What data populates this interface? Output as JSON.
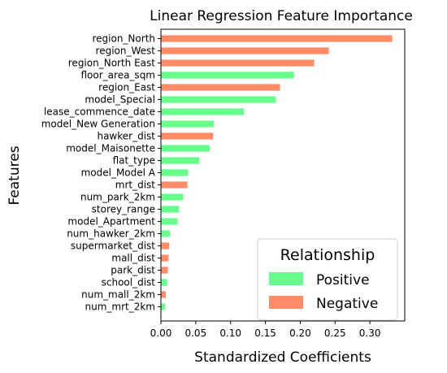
{
  "chart_data": {
    "type": "bar",
    "orientation": "horizontal",
    "title": "Linear Regression Feature Importance",
    "xlabel": "Standardized Coefficients",
    "ylabel": "Features",
    "xlim": [
      0,
      0.35
    ],
    "xticks": [
      "0.00",
      "0.05",
      "0.10",
      "0.15",
      "0.20",
      "0.25",
      "0.30"
    ],
    "xtick_values": [
      0,
      0.05,
      0.1,
      0.15,
      0.2,
      0.25,
      0.3
    ],
    "grid": false,
    "legend": {
      "title": "Relationship",
      "placement": "bottom-right",
      "entries": [
        {
          "label": "Positive",
          "color": "#66ff8c"
        },
        {
          "label": "Negative",
          "color": "#ff8c66"
        }
      ]
    },
    "colors": {
      "Positive": "#66ff8c",
      "Negative": "#ff8c66"
    },
    "bars": [
      {
        "feature": "region_North",
        "value": 0.332,
        "relationship": "Negative"
      },
      {
        "feature": "region_West",
        "value": 0.241,
        "relationship": "Negative"
      },
      {
        "feature": "region_North East",
        "value": 0.22,
        "relationship": "Negative"
      },
      {
        "feature": "floor_area_sqm",
        "value": 0.191,
        "relationship": "Positive"
      },
      {
        "feature": "region_East",
        "value": 0.171,
        "relationship": "Negative"
      },
      {
        "feature": "model_Special",
        "value": 0.165,
        "relationship": "Positive"
      },
      {
        "feature": "lease_commence_date",
        "value": 0.119,
        "relationship": "Positive"
      },
      {
        "feature": "model_New Generation",
        "value": 0.076,
        "relationship": "Positive"
      },
      {
        "feature": "hawker_dist",
        "value": 0.075,
        "relationship": "Negative"
      },
      {
        "feature": "model_Maisonette",
        "value": 0.07,
        "relationship": "Positive"
      },
      {
        "feature": "flat_type",
        "value": 0.055,
        "relationship": "Positive"
      },
      {
        "feature": "model_Model A",
        "value": 0.039,
        "relationship": "Positive"
      },
      {
        "feature": "mrt_dist",
        "value": 0.038,
        "relationship": "Negative"
      },
      {
        "feature": "num_park_2km",
        "value": 0.032,
        "relationship": "Positive"
      },
      {
        "feature": "storey_range",
        "value": 0.026,
        "relationship": "Positive"
      },
      {
        "feature": "model_Apartment",
        "value": 0.024,
        "relationship": "Positive"
      },
      {
        "feature": "num_hawker_2km",
        "value": 0.013,
        "relationship": "Positive"
      },
      {
        "feature": "supermarket_dist",
        "value": 0.012,
        "relationship": "Negative"
      },
      {
        "feature": "mall_dist",
        "value": 0.011,
        "relationship": "Negative"
      },
      {
        "feature": "park_dist",
        "value": 0.01,
        "relationship": "Negative"
      },
      {
        "feature": "school_dist",
        "value": 0.009,
        "relationship": "Positive"
      },
      {
        "feature": "num_mall_2km",
        "value": 0.007,
        "relationship": "Negative"
      },
      {
        "feature": "num_mrt_2km",
        "value": 0.006,
        "relationship": "Positive"
      }
    ]
  }
}
